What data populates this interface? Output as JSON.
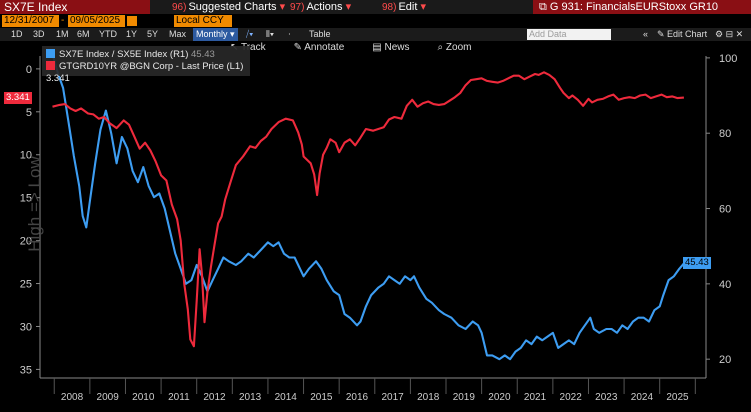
{
  "header": {
    "ticker": "SX7E Index",
    "menus": [
      {
        "num": "96)",
        "label": "Suggested Charts"
      },
      {
        "num": "97)",
        "label": "Actions"
      },
      {
        "num": "98)",
        "label": "Edit"
      }
    ],
    "right_title": "G 931: FinancialsEURStoxx GR10",
    "start_date": "12/31/2007",
    "end_date": "09/05/2025",
    "currency": "Local CCY"
  },
  "toolbar": {
    "periods": [
      "1D",
      "3D",
      "1M",
      "6M",
      "YTD",
      "1Y",
      "5Y",
      "Max"
    ],
    "frequency": "Monthly",
    "table_label": "Table",
    "add_data_placeholder": "Add Data",
    "edit_chart": "Edit Chart",
    "tools": [
      "Track",
      "Annotate",
      "News",
      "Zoom"
    ]
  },
  "legend": {
    "series1_label": "SX7E Index / SX5E Index (R1)",
    "series1_value": "45.43",
    "series2_label": "GTGRD10YR @BGN Corp - Last Price (L1)",
    "series2_value": "3.341"
  },
  "colors": {
    "blue": "#3d9df2",
    "red": "#ee2a3c",
    "axis": "#cccccc"
  },
  "chart_data": {
    "type": "line",
    "title": "SX7E Index",
    "ylabel_left": "High => Low",
    "left_axis": {
      "ticks": [
        0,
        5,
        10,
        15,
        20,
        25,
        30,
        35
      ],
      "range": [
        -1.5,
        36
      ],
      "inverted": true
    },
    "right_axis": {
      "ticks": [
        20,
        40,
        60,
        80,
        100
      ],
      "range": [
        15,
        100.5
      ]
    },
    "x_ticks": [
      "2008",
      "2009",
      "2010",
      "2011",
      "2012",
      "2013",
      "2014",
      "2015",
      "2016",
      "2017",
      "2018",
      "2019",
      "2020",
      "2021",
      "2022",
      "2023",
      "2024",
      "2025"
    ],
    "x_range": [
      2007.6,
      2026.3
    ],
    "series": [
      {
        "name": "SX7E Index / SX5E Index (R1)",
        "axis": "right",
        "last_value": 45.43,
        "points": [
          [
            2007.95,
            101
          ],
          [
            2008.1,
            96
          ],
          [
            2008.25,
            92
          ],
          [
            2008.4,
            83
          ],
          [
            2008.55,
            74
          ],
          [
            2008.7,
            66
          ],
          [
            2008.8,
            58
          ],
          [
            2008.9,
            55
          ],
          [
            2009.0,
            62
          ],
          [
            2009.15,
            72
          ],
          [
            2009.3,
            81
          ],
          [
            2009.45,
            86
          ],
          [
            2009.6,
            80
          ],
          [
            2009.75,
            72
          ],
          [
            2009.9,
            79
          ],
          [
            2010.05,
            76
          ],
          [
            2010.2,
            70
          ],
          [
            2010.35,
            67
          ],
          [
            2010.5,
            71
          ],
          [
            2010.65,
            66
          ],
          [
            2010.8,
            63
          ],
          [
            2010.95,
            64
          ],
          [
            2011.1,
            60
          ],
          [
            2011.25,
            54
          ],
          [
            2011.4,
            48
          ],
          [
            2011.55,
            44
          ],
          [
            2011.7,
            40
          ],
          [
            2011.85,
            41
          ],
          [
            2012.0,
            45
          ],
          [
            2012.15,
            42
          ],
          [
            2012.3,
            38
          ],
          [
            2012.45,
            41
          ],
          [
            2012.6,
            44
          ],
          [
            2012.75,
            47
          ],
          [
            2012.9,
            46
          ],
          [
            2013.1,
            45
          ],
          [
            2013.25,
            46
          ],
          [
            2013.45,
            48
          ],
          [
            2013.6,
            47
          ],
          [
            2013.8,
            49
          ],
          [
            2014.0,
            51
          ],
          [
            2014.15,
            50
          ],
          [
            2014.3,
            51
          ],
          [
            2014.45,
            48
          ],
          [
            2014.6,
            47
          ],
          [
            2014.75,
            47
          ],
          [
            2014.85,
            45
          ],
          [
            2015.0,
            42
          ],
          [
            2015.15,
            44
          ],
          [
            2015.35,
            46
          ],
          [
            2015.5,
            44
          ],
          [
            2015.65,
            41
          ],
          [
            2015.85,
            38
          ],
          [
            2016.0,
            37
          ],
          [
            2016.15,
            32
          ],
          [
            2016.3,
            31
          ],
          [
            2016.5,
            29
          ],
          [
            2016.6,
            30
          ],
          [
            2016.75,
            34
          ],
          [
            2016.9,
            37
          ],
          [
            2017.1,
            39
          ],
          [
            2017.25,
            40
          ],
          [
            2017.4,
            42
          ],
          [
            2017.55,
            41
          ],
          [
            2017.7,
            40
          ],
          [
            2017.85,
            42
          ],
          [
            2018.0,
            41
          ],
          [
            2018.1,
            42
          ],
          [
            2018.25,
            39
          ],
          [
            2018.45,
            36
          ],
          [
            2018.6,
            35
          ],
          [
            2018.8,
            33
          ],
          [
            2018.95,
            32
          ],
          [
            2019.15,
            31
          ],
          [
            2019.35,
            29
          ],
          [
            2019.55,
            28
          ],
          [
            2019.75,
            30
          ],
          [
            2019.9,
            29
          ],
          [
            2020.0,
            27
          ],
          [
            2020.15,
            21
          ],
          [
            2020.3,
            21
          ],
          [
            2020.5,
            20
          ],
          [
            2020.65,
            21
          ],
          [
            2020.8,
            20
          ],
          [
            2020.95,
            22
          ],
          [
            2021.1,
            23
          ],
          [
            2021.25,
            25
          ],
          [
            2021.4,
            24
          ],
          [
            2021.55,
            26
          ],
          [
            2021.7,
            25
          ],
          [
            2021.85,
            26
          ],
          [
            2022.0,
            27
          ],
          [
            2022.15,
            23
          ],
          [
            2022.3,
            24
          ],
          [
            2022.45,
            25
          ],
          [
            2022.6,
            24
          ],
          [
            2022.75,
            27
          ],
          [
            2022.9,
            29
          ],
          [
            2023.05,
            31
          ],
          [
            2023.15,
            28
          ],
          [
            2023.3,
            27
          ],
          [
            2023.5,
            28
          ],
          [
            2023.65,
            28
          ],
          [
            2023.8,
            27
          ],
          [
            2023.95,
            29
          ],
          [
            2024.1,
            28
          ],
          [
            2024.25,
            30
          ],
          [
            2024.4,
            31
          ],
          [
            2024.55,
            31
          ],
          [
            2024.7,
            30
          ],
          [
            2024.85,
            33
          ],
          [
            2025.0,
            34
          ],
          [
            2025.1,
            37
          ],
          [
            2025.25,
            41
          ],
          [
            2025.4,
            42
          ],
          [
            2025.55,
            44
          ],
          [
            2025.68,
            45.43
          ]
        ]
      },
      {
        "name": "GTGRD10YR @BGN Corp - Last Price (L1)",
        "axis": "left",
        "last_value": 3.341,
        "points": [
          [
            2007.95,
            4.4
          ],
          [
            2008.15,
            4.2
          ],
          [
            2008.3,
            4.1
          ],
          [
            2008.45,
            4.6
          ],
          [
            2008.6,
            4.9
          ],
          [
            2008.75,
            4.6
          ],
          [
            2008.95,
            5.2
          ],
          [
            2009.1,
            5.3
          ],
          [
            2009.25,
            5.8
          ],
          [
            2009.4,
            5.6
          ],
          [
            2009.55,
            6.3
          ],
          [
            2009.75,
            6.9
          ],
          [
            2009.95,
            6.0
          ],
          [
            2010.1,
            6.5
          ],
          [
            2010.25,
            7.9
          ],
          [
            2010.4,
            9.3
          ],
          [
            2010.55,
            8.6
          ],
          [
            2010.7,
            9.5
          ],
          [
            2010.85,
            10.8
          ],
          [
            2011.0,
            12.4
          ],
          [
            2011.15,
            13.0
          ],
          [
            2011.3,
            15.8
          ],
          [
            2011.45,
            17.5
          ],
          [
            2011.55,
            20.0
          ],
          [
            2011.65,
            25.0
          ],
          [
            2011.75,
            28.0
          ],
          [
            2011.82,
            31.5
          ],
          [
            2011.92,
            32.3
          ],
          [
            2012.0,
            27.0
          ],
          [
            2012.08,
            21.0
          ],
          [
            2012.15,
            24.0
          ],
          [
            2012.22,
            29.5
          ],
          [
            2012.3,
            26.0
          ],
          [
            2012.4,
            23.0
          ],
          [
            2012.5,
            20.5
          ],
          [
            2012.6,
            18.0
          ],
          [
            2012.7,
            17.2
          ],
          [
            2012.8,
            15.2
          ],
          [
            2012.95,
            13.2
          ],
          [
            2013.1,
            11.2
          ],
          [
            2013.3,
            10.2
          ],
          [
            2013.5,
            9.0
          ],
          [
            2013.65,
            9.2
          ],
          [
            2013.8,
            8.4
          ],
          [
            2013.95,
            7.9
          ],
          [
            2014.1,
            7.0
          ],
          [
            2014.3,
            6.2
          ],
          [
            2014.5,
            5.8
          ],
          [
            2014.7,
            6.0
          ],
          [
            2014.85,
            7.4
          ],
          [
            2014.95,
            8.8
          ],
          [
            2015.0,
            10.2
          ],
          [
            2015.1,
            10.6
          ],
          [
            2015.2,
            11.0
          ],
          [
            2015.3,
            12.3
          ],
          [
            2015.38,
            14.7
          ],
          [
            2015.45,
            12.2
          ],
          [
            2015.55,
            10.0
          ],
          [
            2015.65,
            9.2
          ],
          [
            2015.75,
            8.2
          ],
          [
            2015.9,
            8.6
          ],
          [
            2016.0,
            9.7
          ],
          [
            2016.15,
            8.6
          ],
          [
            2016.3,
            8.2
          ],
          [
            2016.45,
            8.9
          ],
          [
            2016.6,
            8.0
          ],
          [
            2016.75,
            7.0
          ],
          [
            2016.95,
            7.2
          ],
          [
            2017.1,
            7.0
          ],
          [
            2017.25,
            6.8
          ],
          [
            2017.4,
            5.9
          ],
          [
            2017.55,
            5.6
          ],
          [
            2017.75,
            5.8
          ],
          [
            2017.9,
            4.3
          ],
          [
            2018.05,
            3.6
          ],
          [
            2018.2,
            4.4
          ],
          [
            2018.35,
            4.0
          ],
          [
            2018.5,
            3.8
          ],
          [
            2018.65,
            4.1
          ],
          [
            2018.8,
            4.2
          ],
          [
            2018.95,
            4.1
          ],
          [
            2019.1,
            3.7
          ],
          [
            2019.25,
            3.3
          ],
          [
            2019.4,
            2.8
          ],
          [
            2019.55,
            1.9
          ],
          [
            2019.7,
            1.3
          ],
          [
            2019.85,
            1.2
          ],
          [
            2020.0,
            1.1
          ],
          [
            2020.15,
            1.4
          ],
          [
            2020.3,
            1.5
          ],
          [
            2020.45,
            1.6
          ],
          [
            2020.6,
            1.4
          ],
          [
            2020.75,
            1.1
          ],
          [
            2020.9,
            0.8
          ],
          [
            2021.05,
            0.8
          ],
          [
            2021.2,
            1.2
          ],
          [
            2021.35,
            0.9
          ],
          [
            2021.5,
            0.6
          ],
          [
            2021.6,
            0.7
          ],
          [
            2021.75,
            0.4
          ],
          [
            2021.9,
            0.7
          ],
          [
            2022.05,
            1.2
          ],
          [
            2022.2,
            2.2
          ],
          [
            2022.3,
            2.8
          ],
          [
            2022.45,
            3.4
          ],
          [
            2022.55,
            3.1
          ],
          [
            2022.7,
            3.6
          ],
          [
            2022.85,
            4.3
          ],
          [
            2023.0,
            3.5
          ],
          [
            2023.1,
            3.9
          ],
          [
            2023.25,
            3.6
          ],
          [
            2023.4,
            3.5
          ],
          [
            2023.55,
            3.2
          ],
          [
            2023.7,
            3.0
          ],
          [
            2023.85,
            3.6
          ],
          [
            2024.0,
            3.4
          ],
          [
            2024.15,
            3.3
          ],
          [
            2024.3,
            3.4
          ],
          [
            2024.45,
            3.1
          ],
          [
            2024.6,
            3.0
          ],
          [
            2024.75,
            3.4
          ],
          [
            2024.9,
            3.2
          ],
          [
            2025.05,
            3.0
          ],
          [
            2025.2,
            3.3
          ],
          [
            2025.35,
            3.2
          ],
          [
            2025.5,
            3.4
          ],
          [
            2025.68,
            3.341
          ]
        ]
      }
    ]
  }
}
